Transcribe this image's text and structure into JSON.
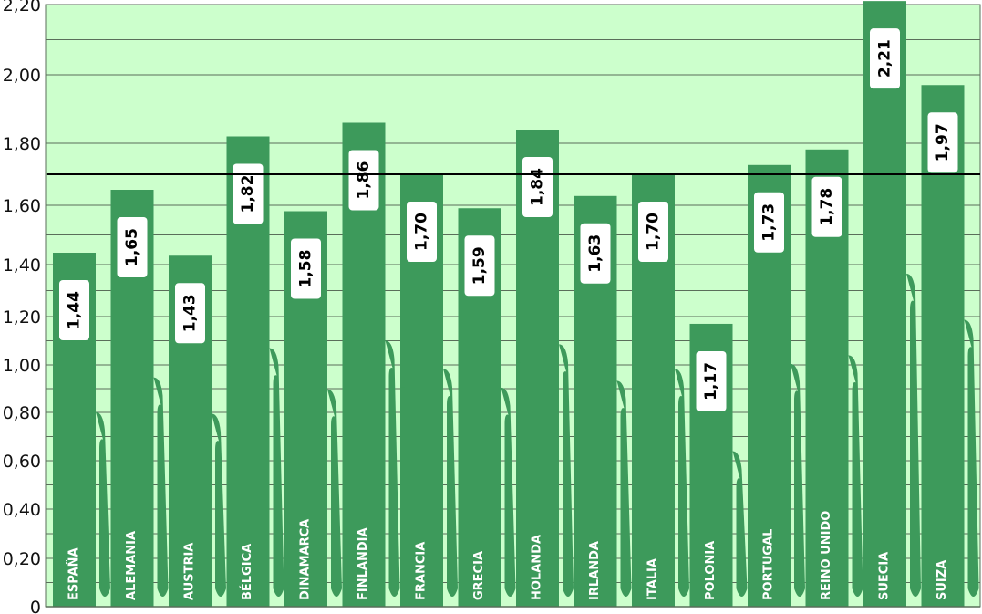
{
  "chart_data": {
    "type": "bar",
    "title": "",
    "xlabel": "",
    "ylabel": "",
    "categories": [
      "ESPAÑA",
      "ALEMANIA",
      "AUSTRIA",
      "BÉLGICA",
      "DINAMARCA",
      "FINLANDIA",
      "FRANCIA",
      "GRECIA",
      "HOLANDA",
      "IRLANDA",
      "ITALIA",
      "POLONIA",
      "PORTUGAL",
      "REINO UNIDO",
      "SUECIA",
      "SUIZA"
    ],
    "values": [
      1.44,
      1.65,
      1.43,
      1.82,
      1.58,
      1.86,
      1.7,
      1.59,
      1.84,
      1.63,
      1.7,
      1.17,
      1.73,
      1.78,
      2.21,
      1.97
    ],
    "data_labels": [
      "1,44",
      "1,65",
      "1,43",
      "1,82",
      "1,58",
      "1,86",
      "1,70",
      "1,59",
      "1,84",
      "1,63",
      "1,70",
      "1,17",
      "1,73",
      "1,78",
      "2,21",
      "1,97"
    ],
    "yticks": [
      0,
      0.2,
      0.4,
      0.6,
      0.8,
      1.0,
      1.2,
      1.4,
      1.6,
      1.8,
      2.0,
      2.2
    ],
    "ytick_labels": [
      "0",
      "0,20",
      "0,40",
      "0,60",
      "0,80",
      "1,00",
      "1,20",
      "1,40",
      "1,60",
      "1,80",
      "2,00",
      "2,20"
    ],
    "ylim": [
      0,
      2.2
    ],
    "reference_line": 1.7,
    "grid": true,
    "colors": {
      "background": "#ccffcc",
      "bar": "#3d9a5b",
      "reference_line": "#000000",
      "grid": "#5a6e5a"
    }
  }
}
